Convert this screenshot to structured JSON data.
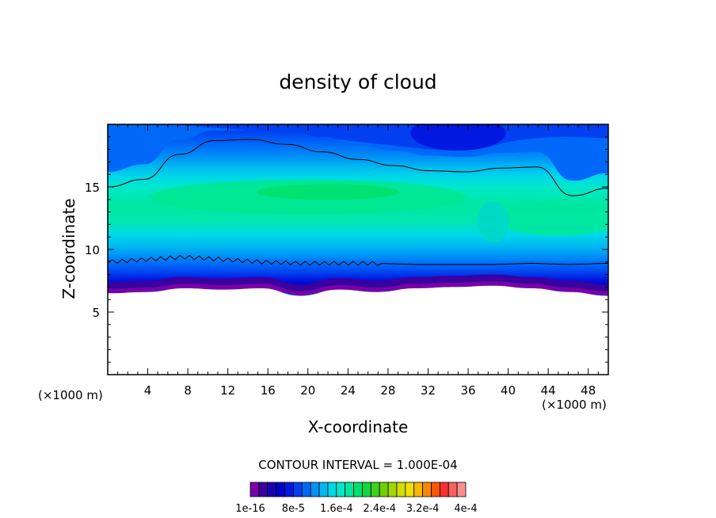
{
  "chart_data": {
    "type": "heatmap",
    "title": "density of cloud",
    "xlabel": "X-coordinate",
    "ylabel": "Z-coordinate",
    "x_unit_label_left": "(×1000 m)",
    "x_unit_label_right": "(×1000 m)",
    "xlim": [
      0,
      50
    ],
    "ylim": [
      0,
      20
    ],
    "x_ticks": [
      4,
      8,
      12,
      16,
      20,
      24,
      28,
      32,
      36,
      40,
      44,
      48
    ],
    "y_ticks": [
      5,
      10,
      15
    ],
    "contour_interval_label": "CONTOUR INTERVAL = 1.000E-04",
    "colorbar": {
      "labels": [
        "1e-16",
        "8e-5",
        "1.6e-4",
        "2.4e-4",
        "3.2e-4",
        "4e-4"
      ],
      "colors": [
        "#7a00a8",
        "#3a00a0",
        "#1a00b0",
        "#0000c8",
        "#0018e0",
        "#0040f0",
        "#0068f8",
        "#0090f8",
        "#00b8f0",
        "#00d8e8",
        "#00e8c8",
        "#00e8a0",
        "#00e070",
        "#10d840",
        "#40d020",
        "#70d000",
        "#a0d800",
        "#d0e000",
        "#f0e000",
        "#f8b800",
        "#f88800",
        "#f85800",
        "#f83030",
        "#f86060",
        "#f89090"
      ]
    },
    "cloud_base_km": [
      6.5,
      6.6,
      6.9,
      6.8,
      6.9,
      6.3,
      6.8,
      6.6,
      6.9,
      7.0,
      7.1,
      6.9,
      6.6,
      6.3
    ],
    "contour_upper_km": [
      15.0,
      15.6,
      17.6,
      18.7,
      18.8,
      18.4,
      17.8,
      17.2,
      16.7,
      16.3,
      16.2,
      16.5,
      16.6,
      14.3,
      14.9
    ],
    "contour_lower_km": [
      9.0,
      9.2,
      9.4,
      9.2,
      9.0,
      8.9,
      8.9,
      8.9,
      8.8,
      8.8,
      8.8,
      8.9,
      8.8,
      8.9
    ]
  }
}
